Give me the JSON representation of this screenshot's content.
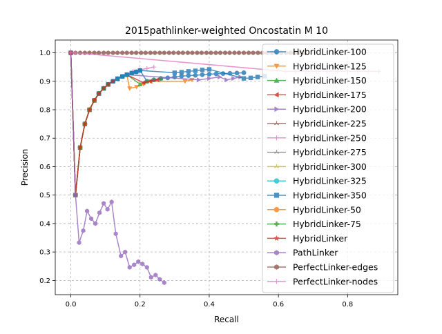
{
  "chart_data": {
    "type": "line",
    "title": "2015pathlinker-weighted Oncostatin M 10",
    "xlabel": "Recall",
    "ylabel": "Precision",
    "xlim": [
      -0.045,
      0.945
    ],
    "ylim": [
      0.15,
      1.045
    ],
    "xticks": [
      0.0,
      0.2,
      0.4,
      0.6,
      0.8
    ],
    "xtick_labels": [
      "0.0",
      "0.2",
      "0.4",
      "0.6",
      "0.8"
    ],
    "yticks": [
      0.2,
      0.3,
      0.4,
      0.5,
      0.6,
      0.7,
      0.8,
      0.9,
      1.0
    ],
    "ytick_labels": [
      "0.2",
      "0.3",
      "0.4",
      "0.5",
      "0.6",
      "0.7",
      "0.8",
      "0.9",
      "1.0"
    ],
    "grid": true,
    "legend_position": "right",
    "series": [
      {
        "name": "HybridLinker-100",
        "color": "#1f77b4",
        "marker": "circle",
        "x": [
          0.0,
          0.0135,
          0.027,
          0.0405,
          0.054,
          0.068,
          0.081,
          0.095,
          0.108,
          0.122,
          0.135,
          0.149,
          0.162,
          0.176,
          0.189,
          0.2,
          0.22,
          0.24,
          0.26,
          0.28,
          0.3,
          0.32,
          0.34,
          0.36,
          0.38,
          0.4,
          0.42,
          0.44,
          0.46,
          0.48,
          0.5
        ],
        "y": [
          1.0,
          0.5,
          0.667,
          0.75,
          0.8,
          0.833,
          0.857,
          0.875,
          0.889,
          0.9,
          0.909,
          0.917,
          0.923,
          0.929,
          0.933,
          0.938,
          0.9,
          0.905,
          0.91,
          0.912,
          0.915,
          0.918,
          0.92,
          0.921,
          0.923,
          0.925,
          0.926,
          0.927,
          0.928,
          0.929,
          0.93
        ]
      },
      {
        "name": "HybridLinker-125",
        "color": "#ff7f0e",
        "marker": "triangle-down",
        "x": [
          0.0,
          0.0135,
          0.027,
          0.0405,
          0.054,
          0.068,
          0.081,
          0.095,
          0.108,
          0.122,
          0.135,
          0.149,
          0.162,
          0.17,
          0.19,
          0.21,
          0.23,
          0.33,
          0.35
        ],
        "y": [
          1.0,
          0.5,
          0.667,
          0.75,
          0.8,
          0.833,
          0.857,
          0.875,
          0.889,
          0.9,
          0.909,
          0.917,
          0.923,
          0.875,
          0.88,
          0.89,
          0.9,
          0.9,
          0.905
        ]
      },
      {
        "name": "HybridLinker-150",
        "color": "#2ca02c",
        "marker": "triangle-up",
        "x": [
          0.0,
          0.0135,
          0.027,
          0.0405,
          0.054,
          0.068,
          0.081,
          0.095,
          0.108,
          0.122,
          0.135,
          0.149,
          0.162,
          0.2,
          0.22,
          0.24,
          0.26
        ],
        "y": [
          1.0,
          0.5,
          0.667,
          0.75,
          0.8,
          0.833,
          0.857,
          0.875,
          0.889,
          0.9,
          0.909,
          0.917,
          0.923,
          0.89,
          0.9,
          0.905,
          0.91
        ]
      },
      {
        "name": "HybridLinker-175",
        "color": "#d62728",
        "marker": "triangle-left",
        "x": [
          0.0,
          0.0135,
          0.027,
          0.0405,
          0.054,
          0.068,
          0.081,
          0.095,
          0.108,
          0.122,
          0.135,
          0.149,
          0.162,
          0.21,
          0.23,
          0.25
        ],
        "y": [
          1.0,
          0.5,
          0.667,
          0.75,
          0.8,
          0.833,
          0.857,
          0.875,
          0.889,
          0.9,
          0.909,
          0.917,
          0.923,
          0.895,
          0.9,
          0.905
        ]
      },
      {
        "name": "HybridLinker-200",
        "color": "#9467bd",
        "marker": "triangle-right",
        "x": [
          0.0,
          0.0135,
          0.027,
          0.0405,
          0.054,
          0.068,
          0.081,
          0.095,
          0.108,
          0.122,
          0.135,
          0.149,
          0.162,
          0.37,
          0.4,
          0.43,
          0.45,
          0.47,
          0.49
        ],
        "y": [
          1.0,
          0.5,
          0.667,
          0.75,
          0.8,
          0.833,
          0.857,
          0.875,
          0.889,
          0.9,
          0.909,
          0.917,
          0.923,
          0.905,
          0.91,
          0.915,
          0.905,
          0.91,
          0.915
        ]
      },
      {
        "name": "HybridLinker-225",
        "color": "#8c564b",
        "marker": "tri",
        "x": [
          0.0,
          0.0135,
          0.027,
          0.0405,
          0.054,
          0.068,
          0.081,
          0.095,
          0.108,
          0.122,
          0.135,
          0.149,
          0.162
        ],
        "y": [
          1.0,
          0.5,
          0.667,
          0.75,
          0.8,
          0.833,
          0.857,
          0.875,
          0.889,
          0.9,
          0.909,
          0.917,
          0.923
        ]
      },
      {
        "name": "HybridLinker-250",
        "color": "#e377c2",
        "marker": "plus",
        "x": [
          0.0,
          0.0135,
          0.027,
          0.0405,
          0.054,
          0.068,
          0.081,
          0.095,
          0.108,
          0.122,
          0.135,
          0.149,
          0.162,
          0.18,
          0.2,
          0.22,
          0.24
        ],
        "y": [
          1.0,
          0.5,
          0.667,
          0.75,
          0.8,
          0.833,
          0.857,
          0.875,
          0.889,
          0.9,
          0.909,
          0.917,
          0.923,
          0.935,
          0.94,
          0.945,
          0.95
        ]
      },
      {
        "name": "HybridLinker-275",
        "color": "#7f7f7f",
        "marker": "tri",
        "x": [
          0.0,
          0.0135,
          0.027,
          0.0405,
          0.054,
          0.068,
          0.081,
          0.095,
          0.108,
          0.122,
          0.135,
          0.149,
          0.162
        ],
        "y": [
          1.0,
          0.5,
          0.667,
          0.75,
          0.8,
          0.833,
          0.857,
          0.875,
          0.889,
          0.9,
          0.909,
          0.917,
          0.923
        ]
      },
      {
        "name": "HybridLinker-300",
        "color": "#bcbd22",
        "marker": "tri",
        "x": [
          0.0,
          0.0135,
          0.027,
          0.0405,
          0.054,
          0.068,
          0.081,
          0.095,
          0.108,
          0.122,
          0.135,
          0.149,
          0.162
        ],
        "y": [
          1.0,
          0.5,
          0.667,
          0.75,
          0.8,
          0.833,
          0.857,
          0.875,
          0.889,
          0.9,
          0.909,
          0.917,
          0.923
        ]
      },
      {
        "name": "HybridLinker-325",
        "color": "#17becf",
        "marker": "circle",
        "x": [
          0.0,
          0.0135,
          0.027,
          0.0405,
          0.054,
          0.068,
          0.081,
          0.095,
          0.108,
          0.122,
          0.135,
          0.149,
          0.162,
          0.176,
          0.189,
          0.2
        ],
        "y": [
          1.0,
          0.5,
          0.667,
          0.75,
          0.8,
          0.833,
          0.857,
          0.875,
          0.889,
          0.9,
          0.909,
          0.917,
          0.923,
          0.929,
          0.933,
          0.938
        ]
      },
      {
        "name": "HybridLinker-350",
        "color": "#1f77b4",
        "marker": "square",
        "x": [
          0.0,
          0.0135,
          0.027,
          0.0405,
          0.054,
          0.068,
          0.081,
          0.095,
          0.108,
          0.122,
          0.135,
          0.149,
          0.162,
          0.176,
          0.189,
          0.2,
          0.3,
          0.32,
          0.34,
          0.36,
          0.38,
          0.4,
          0.5,
          0.52,
          0.54,
          0.56
        ],
        "y": [
          1.0,
          0.5,
          0.667,
          0.75,
          0.8,
          0.833,
          0.857,
          0.875,
          0.889,
          0.9,
          0.909,
          0.917,
          0.923,
          0.929,
          0.933,
          0.938,
          0.93,
          0.932,
          0.935,
          0.937,
          0.94,
          0.942,
          0.91,
          0.912,
          0.915,
          0.918
        ]
      },
      {
        "name": "HybridLinker-50",
        "color": "#ff7f0e",
        "marker": "circle",
        "x": [
          0.0,
          0.0135,
          0.027,
          0.0405,
          0.054,
          0.068
        ],
        "y": [
          1.0,
          0.5,
          0.667,
          0.75,
          0.8,
          0.833
        ]
      },
      {
        "name": "HybridLinker-75",
        "color": "#2ca02c",
        "marker": "plus-bold",
        "x": [
          0.0,
          0.0135,
          0.027,
          0.0405,
          0.054,
          0.068,
          0.081,
          0.095,
          0.108
        ],
        "y": [
          1.0,
          0.5,
          0.667,
          0.75,
          0.8,
          0.833,
          0.857,
          0.875,
          0.889
        ]
      },
      {
        "name": "HybridLinker",
        "color": "#d62728",
        "marker": "star",
        "x": [
          0.0,
          0.0135,
          0.027,
          0.0405,
          0.054,
          0.068,
          0.081,
          0.095,
          0.108,
          0.122
        ],
        "y": [
          1.0,
          0.5,
          0.667,
          0.75,
          0.8,
          0.833,
          0.857,
          0.875,
          0.889,
          0.9
        ]
      },
      {
        "name": "PathLinker",
        "color": "#9467bd",
        "marker": "hexagon",
        "x": [
          0.0,
          0.0135,
          0.024,
          0.036,
          0.047,
          0.059,
          0.071,
          0.083,
          0.095,
          0.106,
          0.118,
          0.13,
          0.145,
          0.157,
          0.17,
          0.183,
          0.195,
          0.207,
          0.22,
          0.232,
          0.245,
          0.257,
          0.27
        ],
        "y": [
          1.0,
          0.5,
          0.333,
          0.375,
          0.444,
          0.417,
          0.4,
          0.438,
          0.471,
          0.45,
          0.476,
          0.364,
          0.286,
          0.3,
          0.246,
          0.255,
          0.266,
          0.258,
          0.246,
          0.211,
          0.219,
          0.204,
          0.192
        ]
      },
      {
        "name": "PerfectLinker-edges",
        "color": "#8c564b",
        "marker": "hexagon",
        "x": [
          0.0,
          0.0135,
          0.027,
          0.0405,
          0.054,
          0.068,
          0.081,
          0.095,
          0.108,
          0.122,
          0.135,
          0.149,
          0.162,
          0.176,
          0.189,
          0.203,
          0.216,
          0.23,
          0.243,
          0.257,
          0.27,
          0.284,
          0.297,
          0.311,
          0.324,
          0.338,
          0.351,
          0.365,
          0.378,
          0.392,
          0.405,
          0.419,
          0.432,
          0.446,
          0.459,
          0.473,
          0.486,
          0.5,
          0.514,
          0.527,
          0.541,
          0.554,
          0.568,
          0.581,
          0.595,
          0.608,
          0.622,
          0.635,
          0.649,
          0.662,
          0.676
        ],
        "y": [
          1.0,
          1.0,
          1.0,
          1.0,
          1.0,
          1.0,
          1.0,
          1.0,
          1.0,
          1.0,
          1.0,
          1.0,
          1.0,
          1.0,
          1.0,
          1.0,
          1.0,
          1.0,
          1.0,
          1.0,
          1.0,
          1.0,
          1.0,
          1.0,
          1.0,
          1.0,
          1.0,
          1.0,
          1.0,
          1.0,
          1.0,
          1.0,
          1.0,
          1.0,
          1.0,
          1.0,
          1.0,
          1.0,
          1.0,
          1.0,
          1.0,
          1.0,
          1.0,
          1.0,
          1.0,
          1.0,
          1.0,
          1.0,
          1.0,
          1.0,
          1.0
        ]
      },
      {
        "name": "PerfectLinker-nodes",
        "color": "#e377c2",
        "marker": "plus",
        "x": [
          0.0,
          0.0135,
          0.62,
          0.65,
          0.68,
          0.71,
          0.74,
          0.77,
          0.8,
          0.83,
          0.86,
          0.89
        ],
        "y": [
          1.0,
          1.0,
          0.935,
          0.935,
          0.935,
          0.935,
          0.935,
          0.935,
          0.935,
          0.935,
          0.935,
          0.935
        ]
      }
    ]
  }
}
